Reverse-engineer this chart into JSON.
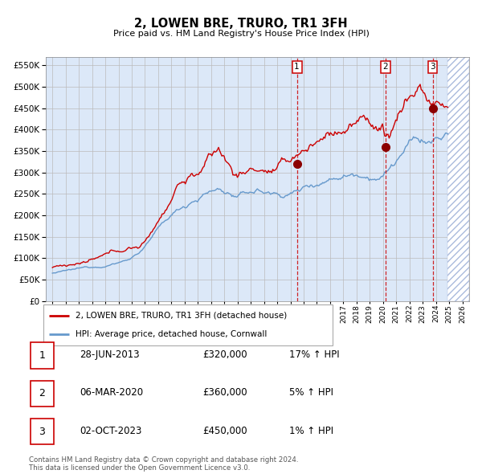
{
  "title": "2, LOWEN BRE, TRURO, TR1 3FH",
  "subtitle": "Price paid vs. HM Land Registry's House Price Index (HPI)",
  "legend_line1": "2, LOWEN BRE, TRURO, TR1 3FH (detached house)",
  "legend_line2": "HPI: Average price, detached house, Cornwall",
  "footer1": "Contains HM Land Registry data © Crown copyright and database right 2024.",
  "footer2": "This data is licensed under the Open Government Licence v3.0.",
  "transactions": [
    {
      "label": "1",
      "date": "28-JUN-2013",
      "price": "£320,000",
      "hpi": "17% ↑ HPI",
      "year": 2013.49
    },
    {
      "label": "2",
      "date": "06-MAR-2020",
      "price": "£360,000",
      "hpi": "5% ↑ HPI",
      "year": 2020.18
    },
    {
      "label": "3",
      "date": "02-OCT-2023",
      "price": "£450,000",
      "hpi": "1% ↑ HPI",
      "year": 2023.75
    }
  ],
  "transaction_prices": [
    320000,
    360000,
    450000
  ],
  "xlim": [
    1994.5,
    2026.5
  ],
  "ylim": [
    0,
    570000
  ],
  "yticks": [
    0,
    50000,
    100000,
    150000,
    200000,
    250000,
    300000,
    350000,
    400000,
    450000,
    500000,
    550000
  ],
  "background_color": "#ffffff",
  "plot_bg": "#dce8f8",
  "hatch_color": "#aabbdd",
  "grid_color": "#bbbbbb",
  "red_color": "#cc0000",
  "blue_color": "#6699cc",
  "shaded_start": 2013.49,
  "shaded_end": 2026.5,
  "hatch_start": 2024.9
}
